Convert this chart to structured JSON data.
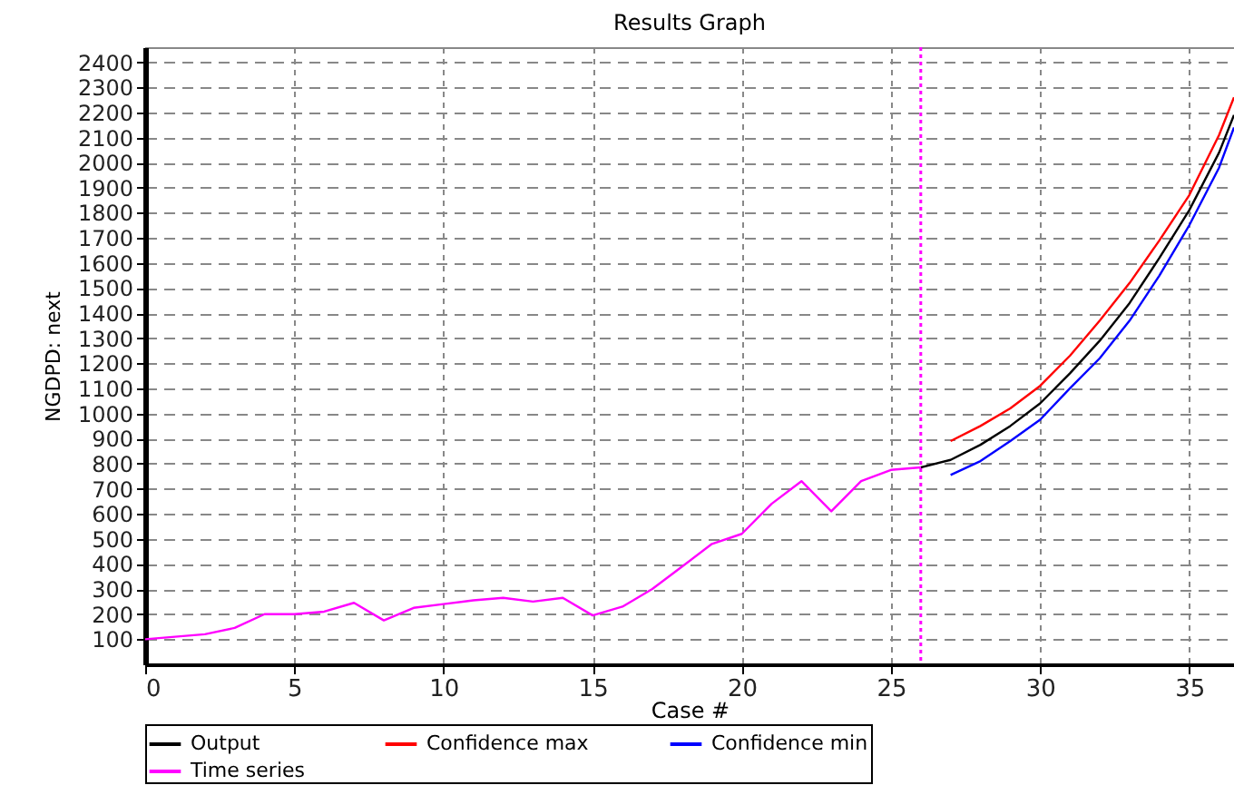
{
  "chart_data": {
    "type": "line",
    "title": "Results Graph",
    "xlabel": "Case #",
    "ylabel": "NGDPD: next",
    "xlim": [
      0,
      36.5
    ],
    "xticks": [
      0,
      5,
      10,
      15,
      20,
      25,
      30,
      35
    ],
    "ylim": [
      0,
      2460
    ],
    "yticks": [
      100,
      200,
      300,
      400,
      500,
      600,
      700,
      800,
      900,
      1000,
      1100,
      1200,
      1300,
      1400,
      1500,
      1600,
      1700,
      1800,
      1900,
      2000,
      2100,
      2200,
      2300,
      2400
    ],
    "grid": true,
    "legend": "bottom",
    "line_style": "solid",
    "series": [
      {
        "name": "Output",
        "color": "#000000",
        "x": [
          26,
          27,
          28,
          29,
          30,
          31,
          32,
          33,
          34,
          35,
          36,
          36.5
        ],
        "values": [
          785,
          815,
          875,
          950,
          1040,
          1160,
          1290,
          1440,
          1620,
          1810,
          2040,
          2190
        ]
      },
      {
        "name": "Confidence max",
        "color": "#ff0000",
        "x": [
          27,
          28,
          29,
          30,
          31,
          32,
          33,
          34,
          35,
          36,
          36.5
        ],
        "values": [
          890,
          950,
          1020,
          1110,
          1230,
          1370,
          1520,
          1690,
          1870,
          2110,
          2260
        ]
      },
      {
        "name": "Confidence min",
        "color": "#0000ff",
        "x": [
          27,
          28,
          29,
          30,
          31,
          32,
          33,
          34,
          35,
          36,
          36.5
        ],
        "values": [
          755,
          810,
          890,
          975,
          1100,
          1220,
          1370,
          1550,
          1750,
          1980,
          2140
        ]
      },
      {
        "name": "Time series",
        "color": "#ff00ff",
        "x": [
          0,
          1,
          2,
          3,
          4,
          5,
          6,
          7,
          8,
          9,
          10,
          11,
          12,
          13,
          14,
          15,
          16,
          17,
          18,
          19,
          20,
          21,
          22,
          23,
          24,
          25,
          26
        ],
        "values": [
          100,
          110,
          120,
          145,
          200,
          200,
          210,
          245,
          175,
          225,
          240,
          255,
          265,
          250,
          265,
          195,
          230,
          300,
          390,
          480,
          520,
          640,
          730,
          610,
          730,
          775,
          785
        ]
      }
    ],
    "ref_lines": [
      {
        "axis": "x",
        "value": 26,
        "color": "#ff00ff",
        "line_style": "dotted"
      }
    ]
  }
}
